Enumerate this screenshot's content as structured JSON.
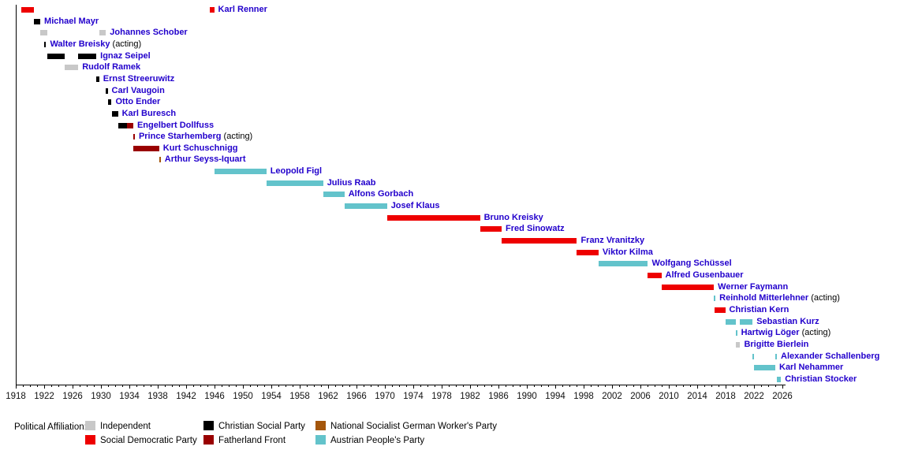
{
  "colors": {
    "independent": "#C8C8C8",
    "social_democratic": "#EE0000",
    "christian_social": "#000000",
    "fatherland_front": "#990000",
    "nsdap": "#A4560B",
    "austrian_peoples": "#63C3CB",
    "name_label": "#2200CC",
    "axis": "#000000"
  },
  "legend": {
    "label": "Political Affiliation:",
    "items": [
      {
        "label": "Independent",
        "party": "independent",
        "col": 0,
        "row": 0
      },
      {
        "label": "Social Democratic Party",
        "party": "social_democratic",
        "col": 0,
        "row": 1
      },
      {
        "label": "Christian Social Party",
        "party": "christian_social",
        "col": 1,
        "row": 0
      },
      {
        "label": "Fatherland Front",
        "party": "fatherland_front",
        "col": 1,
        "row": 1
      },
      {
        "label": "National Socialist German Worker's Party",
        "party": "nsdap",
        "col": 2,
        "row": 0
      },
      {
        "label": "Austrian People's Party",
        "party": "austrian_peoples",
        "col": 2,
        "row": 1
      }
    ]
  },
  "chart_data": {
    "type": "bar",
    "subtype": "gantt-timeline",
    "title": "",
    "xlabel": "",
    "ylabel": "",
    "x_range": [
      1918,
      2026.4
    ],
    "x_major_ticks": [
      1918,
      1922,
      1926,
      1930,
      1934,
      1938,
      1942,
      1946,
      1950,
      1954,
      1958,
      1962,
      1966,
      1970,
      1974,
      1978,
      1982,
      1986,
      1990,
      1994,
      1998,
      2002,
      2006,
      2010,
      2014,
      2018,
      2022,
      2026
    ],
    "x_minor_tick_step": 1,
    "acting_suffix": " (acting)",
    "chancellors": [
      {
        "name": "Karl Renner",
        "acting": false,
        "party": "social_democratic",
        "terms": [
          {
            "start": 1918.8,
            "end": 1920.6
          },
          {
            "start": 1945.3,
            "end": 1945.95
          }
        ]
      },
      {
        "name": "Michael Mayr",
        "acting": false,
        "party": "christian_social",
        "terms": [
          {
            "start": 1920.6,
            "end": 1921.45
          }
        ]
      },
      {
        "name": "Johannes Schober",
        "acting": false,
        "party": "independent",
        "terms": [
          {
            "start": 1921.45,
            "end": 1922.4
          },
          {
            "start": 1929.75,
            "end": 1930.7
          }
        ]
      },
      {
        "name": "Walter Breisky",
        "acting": true,
        "party": "christian_social",
        "terms": [
          {
            "start": 1922.05,
            "end": 1922.25
          }
        ]
      },
      {
        "name": "Ignaz Seipel",
        "acting": false,
        "party": "christian_social",
        "terms": [
          {
            "start": 1922.4,
            "end": 1924.9
          },
          {
            "start": 1926.8,
            "end": 1929.35
          }
        ]
      },
      {
        "name": "Rudolf Ramek",
        "acting": false,
        "party": "independent",
        "terms": [
          {
            "start": 1924.9,
            "end": 1926.8
          }
        ]
      },
      {
        "name": "Ernst Streeruwitz",
        "acting": false,
        "party": "christian_social",
        "terms": [
          {
            "start": 1929.35,
            "end": 1929.75
          }
        ]
      },
      {
        "name": "Carl Vaugoin",
        "acting": false,
        "party": "christian_social",
        "terms": [
          {
            "start": 1930.7,
            "end": 1930.95
          }
        ]
      },
      {
        "name": "Otto Ender",
        "acting": false,
        "party": "christian_social",
        "terms": [
          {
            "start": 1930.95,
            "end": 1931.5
          }
        ]
      },
      {
        "name": "Karl Buresch",
        "acting": false,
        "party": "christian_social",
        "terms": [
          {
            "start": 1931.5,
            "end": 1932.4
          }
        ]
      },
      {
        "name": "Engelbert Dollfuss",
        "acting": false,
        "party": "christian_social",
        "terms": [
          {
            "start": 1932.4,
            "end": 1933.7
          },
          {
            "start": 1933.7,
            "end": 1934.55,
            "party": "fatherland_front"
          }
        ]
      },
      {
        "name": "Prince Starhemberg",
        "acting": true,
        "party": "fatherland_front",
        "terms": [
          {
            "start": 1934.55,
            "end": 1934.7
          }
        ]
      },
      {
        "name": "Kurt Schuschnigg",
        "acting": false,
        "party": "fatherland_front",
        "terms": [
          {
            "start": 1934.6,
            "end": 1938.2
          }
        ]
      },
      {
        "name": "Arthur Seyss-Iquart",
        "acting": false,
        "party": "nsdap",
        "terms": [
          {
            "start": 1938.2,
            "end": 1938.35
          }
        ]
      },
      {
        "name": "Leopold Figl",
        "acting": false,
        "party": "austrian_peoples",
        "terms": [
          {
            "start": 1945.95,
            "end": 1953.3
          }
        ]
      },
      {
        "name": "Julius Raab",
        "acting": false,
        "party": "austrian_peoples",
        "terms": [
          {
            "start": 1953.3,
            "end": 1961.3
          }
        ]
      },
      {
        "name": "Alfons Gorbach",
        "acting": false,
        "party": "austrian_peoples",
        "terms": [
          {
            "start": 1961.3,
            "end": 1964.3
          }
        ]
      },
      {
        "name": "Josef Klaus",
        "acting": false,
        "party": "austrian_peoples",
        "terms": [
          {
            "start": 1964.3,
            "end": 1970.3
          }
        ]
      },
      {
        "name": "Bruno Kreisky",
        "acting": false,
        "party": "social_democratic",
        "terms": [
          {
            "start": 1970.3,
            "end": 1983.4
          }
        ]
      },
      {
        "name": "Fred Sinowatz",
        "acting": false,
        "party": "social_democratic",
        "terms": [
          {
            "start": 1983.4,
            "end": 1986.45
          }
        ]
      },
      {
        "name": "Franz Vranitzky",
        "acting": false,
        "party": "social_democratic",
        "terms": [
          {
            "start": 1986.45,
            "end": 1997.05
          }
        ]
      },
      {
        "name": "Viktor Kilma",
        "acting": false,
        "party": "social_democratic",
        "terms": [
          {
            "start": 1997.05,
            "end": 2000.1
          }
        ]
      },
      {
        "name": "Wolfgang Schüssel",
        "acting": false,
        "party": "austrian_peoples",
        "terms": [
          {
            "start": 2000.1,
            "end": 2007.05
          }
        ]
      },
      {
        "name": "Alfred Gusenbauer",
        "acting": false,
        "party": "social_democratic",
        "terms": [
          {
            "start": 2007.05,
            "end": 2008.95
          }
        ]
      },
      {
        "name": "Werner Faymann",
        "acting": false,
        "party": "social_democratic",
        "terms": [
          {
            "start": 2008.95,
            "end": 2016.35
          }
        ]
      },
      {
        "name": "Reinhold Mitterlehner",
        "acting": true,
        "party": "austrian_peoples",
        "terms": [
          {
            "start": 2016.35,
            "end": 2016.5
          }
        ]
      },
      {
        "name": "Christian Kern",
        "acting": false,
        "party": "social_democratic",
        "terms": [
          {
            "start": 2016.4,
            "end": 2017.95
          }
        ]
      },
      {
        "name": "Sebastian Kurz",
        "acting": false,
        "party": "austrian_peoples",
        "terms": [
          {
            "start": 2017.95,
            "end": 2019.4
          },
          {
            "start": 2020.05,
            "end": 2021.8
          }
        ]
      },
      {
        "name": "Hartwig Löger",
        "acting": true,
        "party": "austrian_peoples",
        "terms": [
          {
            "start": 2019.4,
            "end": 2019.55
          }
        ]
      },
      {
        "name": "Brigitte Bierlein",
        "acting": false,
        "party": "independent",
        "terms": [
          {
            "start": 2019.45,
            "end": 2020.05
          }
        ]
      },
      {
        "name": "Alexander Schallenberg",
        "acting": false,
        "party": "austrian_peoples",
        "terms": [
          {
            "start": 2021.8,
            "end": 2021.95
          },
          {
            "start": 2025.0,
            "end": 2025.15
          }
        ]
      },
      {
        "name": "Karl Nehammer",
        "acting": false,
        "party": "austrian_peoples",
        "terms": [
          {
            "start": 2021.95,
            "end": 2025.0
          }
        ]
      },
      {
        "name": "Christian Stocker",
        "acting": false,
        "party": "austrian_peoples",
        "terms": [
          {
            "start": 2025.2,
            "end": 2025.8
          }
        ]
      }
    ]
  }
}
